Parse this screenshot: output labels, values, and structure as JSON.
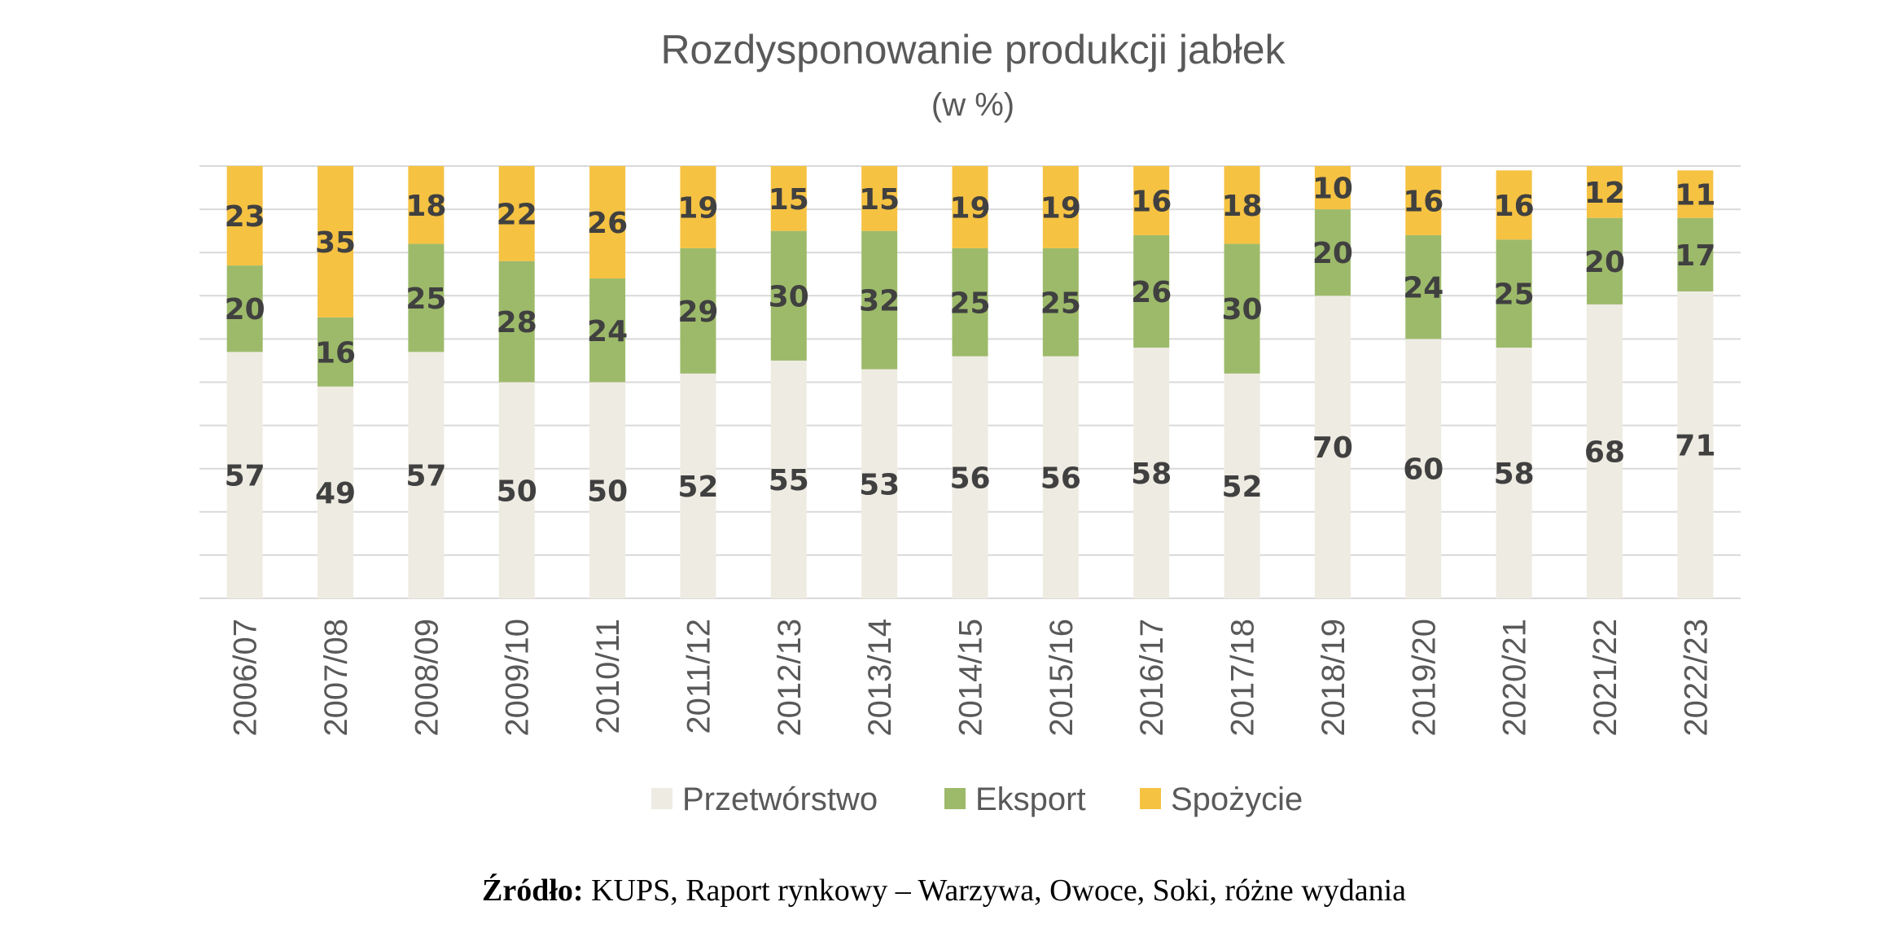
{
  "chart_data": {
    "type": "bar",
    "stacked": true,
    "title": "Rozdysponowanie produkcji jabłek",
    "subtitle": "(w %)",
    "xlabel": "",
    "ylabel": "",
    "ylim": [
      0,
      100
    ],
    "grid": true,
    "legend_position": "bottom",
    "categories": [
      "2006/07",
      "2007/08",
      "2008/09",
      "2009/10",
      "2010/11",
      "2011/12",
      "2012/13",
      "2013/14",
      "2014/15",
      "2015/16",
      "2016/17",
      "2017/18",
      "2018/19",
      "2019/20",
      "2020/21",
      "2021/22",
      "2022/23"
    ],
    "series": [
      {
        "name": "Przetwórstwo",
        "color": "#EEEBE2",
        "values": [
          57,
          49,
          57,
          50,
          50,
          52,
          55,
          53,
          56,
          56,
          58,
          52,
          70,
          60,
          58,
          68,
          71
        ]
      },
      {
        "name": "Eksport",
        "color": "#9DBA6A",
        "values": [
          20,
          16,
          25,
          28,
          24,
          29,
          30,
          32,
          25,
          25,
          26,
          30,
          20,
          24,
          25,
          20,
          17
        ]
      },
      {
        "name": "Spożycie",
        "color": "#F5C242",
        "values": [
          23,
          35,
          18,
          22,
          26,
          19,
          15,
          15,
          19,
          19,
          16,
          18,
          10,
          16,
          16,
          12,
          11
        ]
      }
    ]
  },
  "source": {
    "label": "Źródło:",
    "text": " KUPS, Raport rynkowy – Warzywa, Owoce, Soki, różne wydania"
  }
}
